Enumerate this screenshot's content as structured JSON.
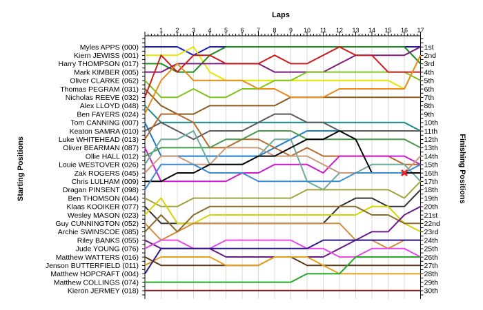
{
  "chart_data": {
    "type": "line",
    "x_axis_title": "Laps",
    "left_axis_title": "Starting Positions",
    "right_axis_title": "Finishing Positions",
    "laps": [
      1,
      2,
      3,
      4,
      5,
      6,
      7,
      8,
      9,
      10,
      11,
      12,
      13,
      14,
      15,
      16,
      17
    ],
    "drivers": [
      "Myles APPS (000)",
      "Kiern JEWISS (001)",
      "Harry THOMPSON (017)",
      "Mark KIMBER (005)",
      "Oliver CLARKE (062)",
      "Thomas PEGRAM (031)",
      "Nicholas REEVE (032)",
      "Alex LLOYD (048)",
      "Ben FAYERS (024)",
      "Tom CANNING (007)",
      "Keaton SAMRA (010)",
      "Luke WHITEHEAD (013)",
      "Oliver BEARMAN (087)",
      "Ollie HALL (012)",
      "Louie WESTOVER (026)",
      "Zak ROGERS (045)",
      "Chris LULHAM (009)",
      "Dragan PINSENT (098)",
      "Ben THOMSON (044)",
      "Klaas KOOIKER (077)",
      "Wesley MASON (023)",
      "Guy CUNNINGTON (052)",
      "Archie SWINSCOE (085)",
      "Riley BANKS (055)",
      "Jude YOUNG (076)",
      "Matthew WATTERS (016)",
      "Jenson BUTTERFIELD (011)",
      "Matthew HOPCRAFT (004)",
      "Matthew COLLINGS (074)",
      "Kieron JERMEY (018)"
    ],
    "finishing_labels": [
      "1st",
      "2nd",
      "3rd",
      "4th",
      "5th",
      "6th",
      "7th",
      "8th",
      "9th",
      "10th",
      "11th",
      "12th",
      "13th",
      "14th",
      "15th",
      "16th",
      "17th",
      "18th",
      "19th",
      "20th",
      "21st",
      "22nd",
      "23rd",
      "24th",
      "25th",
      "26th",
      "27th",
      "28th",
      "29th",
      "30th"
    ],
    "series": [
      {
        "color": "#1a1acc",
        "positions": [
          1,
          1,
          1,
          2,
          1,
          1,
          1,
          1,
          1,
          1,
          1,
          1,
          1,
          1,
          1,
          1,
          1,
          1
        ]
      },
      {
        "color": "#e6e600",
        "positions": [
          2,
          2,
          2,
          1,
          4,
          5,
          5,
          5,
          5,
          5,
          5,
          5,
          5,
          5,
          5,
          5,
          6,
          2
        ]
      },
      {
        "color": "#1a8c1a",
        "positions": [
          3,
          3,
          4,
          4,
          2,
          1,
          1,
          1,
          1,
          1,
          1,
          1,
          1,
          1,
          1,
          1,
          1,
          3
        ]
      },
      {
        "color": "#7a1a7a",
        "positions": [
          4,
          4,
          3,
          3,
          3,
          3,
          3,
          3,
          4,
          4,
          4,
          4,
          3,
          2,
          2,
          2,
          2,
          1
        ]
      },
      {
        "color": "#7fc41a",
        "positions": [
          5,
          7,
          7,
          6,
          7,
          7,
          6,
          6,
          5,
          5,
          4,
          4,
          4,
          4,
          4,
          4,
          4,
          5
        ]
      },
      {
        "color": "#8c5a1a",
        "positions": [
          6,
          8,
          9,
          9,
          8,
          8,
          8,
          8,
          8,
          7,
          7,
          7,
          7,
          7,
          7,
          7,
          7,
          7
        ]
      },
      {
        "color": "#cc1a1a",
        "positions": [
          7,
          2,
          4,
          2,
          2,
          3,
          3,
          3,
          2,
          3,
          3,
          2,
          1,
          2,
          2,
          4,
          4,
          4
        ]
      },
      {
        "color": "#1a8c8c",
        "positions": [
          8,
          10,
          10,
          10,
          10,
          10,
          10,
          10,
          10,
          10,
          10,
          10,
          10,
          10,
          10,
          10,
          10,
          11
        ]
      },
      {
        "color": "#e68c1a",
        "positions": [
          9,
          5,
          3,
          5,
          5,
          5,
          5,
          6,
          6,
          7,
          7,
          7,
          6,
          6,
          6,
          6,
          6,
          2
        ]
      },
      {
        "color": "#1a7acc",
        "positions": [
          10,
          14,
          14,
          14,
          14,
          14,
          14,
          14,
          13,
          12,
          11,
          11,
          11,
          11,
          11,
          11,
          11,
          11
        ]
      },
      {
        "color": "#5a5a5a",
        "positions": [
          11,
          10,
          11,
          12,
          11,
          11,
          11,
          10,
          9,
          9,
          10,
          10,
          11,
          11,
          11,
          11,
          11,
          11
        ]
      },
      {
        "color": "#b86a2a",
        "positions": [
          12,
          9,
          9,
          10,
          13,
          13,
          12,
          12,
          13,
          14,
          13,
          14,
          14,
          14,
          14,
          14,
          15,
          15
        ]
      },
      {
        "color": "#cc1acc",
        "positions": [
          13,
          17,
          17,
          17,
          17,
          17,
          16,
          16,
          15,
          15,
          15,
          16,
          14,
          14,
          14,
          14,
          14,
          15
        ]
      },
      {
        "color": "#4a9a4a",
        "positions": [
          14,
          13,
          13,
          13,
          13,
          12,
          12,
          11,
          11,
          11,
          12,
          12,
          12,
          12,
          12,
          12,
          12,
          13
        ]
      },
      {
        "color": "#6aaa9a",
        "positions": [
          15,
          12,
          12,
          11,
          15,
          15,
          15,
          14,
          12,
          12,
          17,
          18,
          16,
          16,
          15,
          15,
          15,
          17
        ]
      },
      {
        "color": "#c89a7a",
        "positions": [
          16,
          14,
          14,
          15,
          15,
          13,
          13,
          13,
          14,
          14,
          14,
          15,
          16,
          16,
          16,
          16,
          16,
          14
        ]
      },
      {
        "color": "#000000",
        "positions": [
          17,
          17,
          16,
          16,
          15,
          15,
          15,
          14,
          14,
          13,
          12,
          12,
          11,
          12,
          16,
          16,
          16,
          16
        ]
      },
      {
        "color": "#3a8cd4",
        "positions": [
          18,
          15,
          15,
          15,
          16,
          16,
          16,
          17,
          17,
          17,
          17,
          17,
          17,
          16,
          16,
          16,
          16,
          15
        ]
      },
      {
        "color": "#a3a33a",
        "positions": [
          19,
          20,
          20,
          19,
          19,
          19,
          19,
          19,
          19,
          19,
          18,
          18,
          18,
          18,
          18,
          18,
          19,
          17
        ]
      },
      {
        "color": "#333333",
        "positions": [
          20,
          22,
          22,
          22,
          22,
          22,
          22,
          22,
          22,
          22,
          22,
          22,
          20,
          19,
          19,
          20,
          20,
          18
        ]
      },
      {
        "color": "#d4d400",
        "positions": [
          21,
          19,
          22,
          22,
          21,
          21,
          21,
          21,
          21,
          21,
          21,
          21,
          21,
          21,
          20,
          20,
          22,
          23
        ]
      },
      {
        "color": "#d48c3a",
        "positions": [
          22,
          24,
          23,
          22,
          22,
          22,
          22,
          22,
          22,
          22,
          22,
          22,
          22,
          24,
          24,
          25,
          24,
          24
        ]
      },
      {
        "color": "#8c6a2a",
        "positions": [
          23,
          21,
          23,
          21,
          20,
          20,
          20,
          20,
          20,
          20,
          20,
          20,
          20,
          20,
          21,
          21,
          22,
          22
        ]
      },
      {
        "color": "#6a1a8c",
        "positions": [
          24,
          25,
          25,
          25,
          25,
          26,
          26,
          26,
          26,
          26,
          26,
          26,
          25,
          24,
          23,
          23,
          21,
          20
        ]
      },
      {
        "color": "#e64ae6",
        "positions": [
          25,
          24,
          24,
          25,
          25,
          24,
          24,
          24,
          24,
          24,
          25,
          25,
          26,
          26,
          25,
          25,
          25,
          26
        ]
      },
      {
        "color": "#5a3a1a",
        "positions": [
          26,
          27,
          27,
          27,
          27,
          27,
          27,
          27,
          26,
          26,
          27,
          27,
          27,
          27,
          27,
          27,
          27,
          27
        ]
      },
      {
        "color": "#e6a01a",
        "positions": [
          27,
          26,
          26,
          26,
          26,
          27,
          27,
          27,
          26,
          26,
          26,
          27,
          28,
          28,
          28,
          28,
          28,
          28
        ]
      },
      {
        "color": "#2a1a8c",
        "positions": [
          28,
          25,
          25,
          25,
          25,
          25,
          25,
          25,
          25,
          25,
          25,
          24,
          24,
          24,
          24,
          24,
          24,
          24
        ]
      },
      {
        "color": "#22aa22",
        "positions": [
          29,
          29,
          29,
          29,
          29,
          29,
          29,
          29,
          29,
          29,
          28,
          28,
          28,
          26,
          26,
          26,
          26,
          26
        ]
      },
      {
        "color": "#8c1a1a",
        "positions": [
          30,
          30,
          30,
          30,
          30,
          30,
          30,
          30,
          30,
          30,
          30,
          30,
          30,
          30,
          30,
          30,
          30,
          30
        ]
      }
    ],
    "retirement_marker": {
      "lap": 16,
      "position": 16,
      "color": "#e62222",
      "symbol": "x"
    }
  }
}
